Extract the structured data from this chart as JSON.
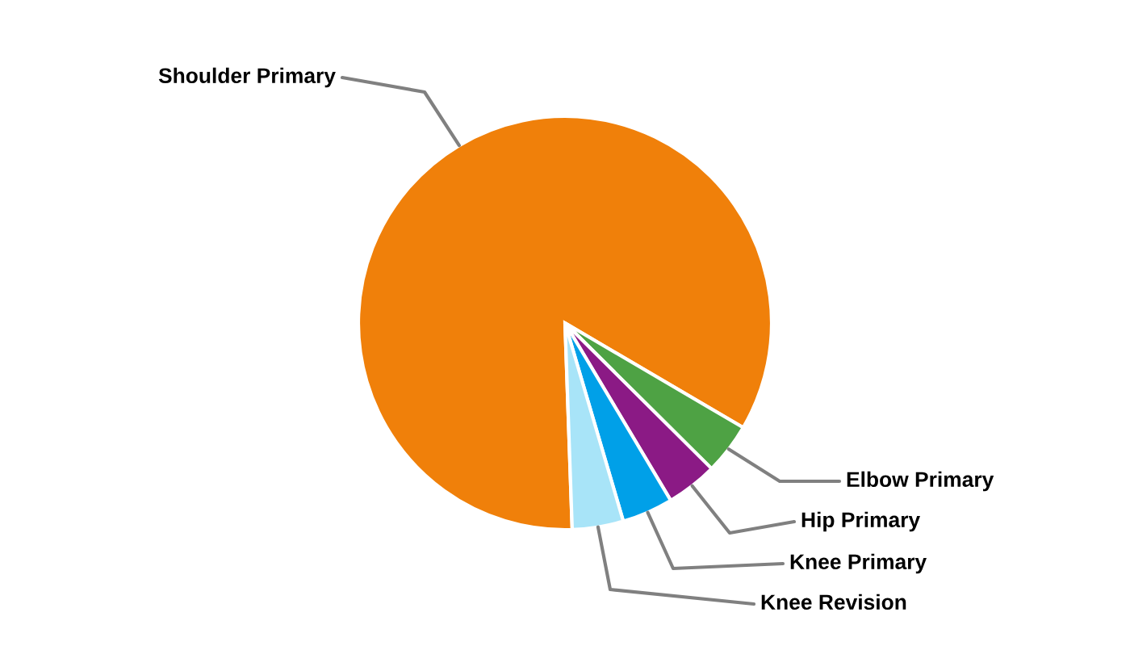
{
  "chart_data": {
    "type": "pie",
    "categories": [
      "Shoulder Primary",
      "Elbow Primary",
      "Hip Primary",
      "Knee Primary",
      "Knee Revision"
    ],
    "values": [
      84,
      4,
      4,
      4,
      4
    ],
    "colors": [
      "#f0800a",
      "#4ea244",
      "#8b1a85",
      "#00a0e8",
      "#a8e4f8"
    ]
  }
}
